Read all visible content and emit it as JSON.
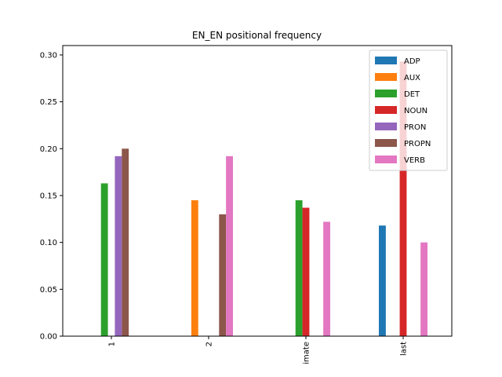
{
  "chart_data": {
    "type": "bar",
    "title": "EN_EN positional frequency",
    "xlabel": "",
    "ylabel": "",
    "categories": [
      "1",
      "2",
      "imate",
      "last"
    ],
    "ylim": [
      0,
      0.31
    ],
    "yticks": [
      "0.00",
      "0.05",
      "0.10",
      "0.15",
      "0.20",
      "0.25",
      "0.30"
    ],
    "legend_position": "top-right",
    "grid": false,
    "series": [
      {
        "name": "ADP",
        "color": "#1f77b4",
        "values": [
          0,
          0,
          0,
          0.118
        ]
      },
      {
        "name": "AUX",
        "color": "#ff7f0e",
        "values": [
          0,
          0.145,
          0,
          0
        ]
      },
      {
        "name": "DET",
        "color": "#2ca02c",
        "values": [
          0.163,
          0,
          0.145,
          0
        ]
      },
      {
        "name": "NOUN",
        "color": "#d62728",
        "values": [
          0,
          0,
          0.137,
          0.293
        ]
      },
      {
        "name": "PRON",
        "color": "#9467bd",
        "values": [
          0.192,
          0,
          0,
          0
        ]
      },
      {
        "name": "PROPN",
        "color": "#8c564b",
        "values": [
          0.2,
          0.13,
          0,
          0
        ]
      },
      {
        "name": "VERB",
        "color": "#e377c2",
        "values": [
          0,
          0.192,
          0.122,
          0.1
        ]
      }
    ]
  }
}
